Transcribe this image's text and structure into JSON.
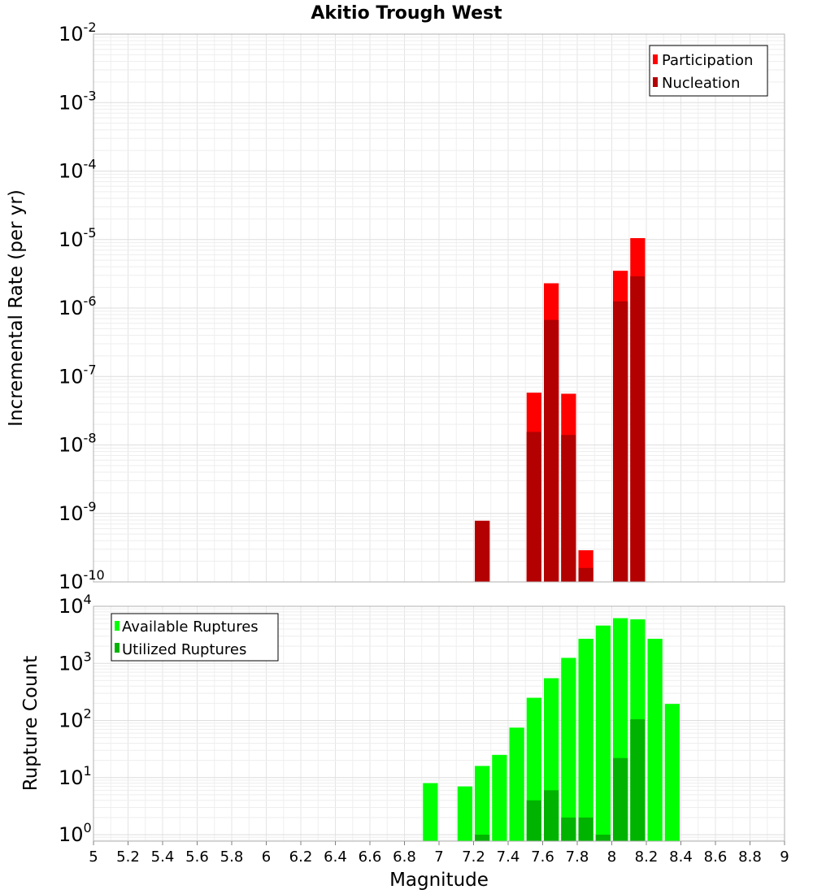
{
  "chart_data": [
    {
      "type": "bar",
      "title": "Akitio Trough West",
      "ylabel": "Incremental Rate (per yr)",
      "xlim": [
        5,
        9
      ],
      "ylim": [
        1e-10,
        0.01
      ],
      "yscale": "log",
      "ytick_exponents": [
        -2,
        -3,
        -4,
        -5,
        -6,
        -7,
        -8,
        -9,
        -10
      ],
      "grid": true,
      "legend_position": "top-right",
      "series": [
        {
          "name": "Participation",
          "color": "#ff0000",
          "x": [
            7.25,
            7.55,
            7.65,
            7.75,
            7.85,
            8.05,
            8.15
          ],
          "values": [
            7.8e-10,
            5.8e-08,
            2.3e-06,
            5.6e-08,
            2.9e-10,
            3.5e-06,
            1.05e-05
          ]
        },
        {
          "name": "Nucleation",
          "color": "#b30000",
          "x": [
            7.25,
            7.55,
            7.65,
            7.75,
            7.85,
            8.05,
            8.15
          ],
          "values": [
            7.8e-10,
            1.55e-08,
            6.7e-07,
            1.4e-08,
            1.6e-10,
            1.25e-06,
            2.9e-06
          ]
        }
      ]
    },
    {
      "type": "bar",
      "ylabel": "Rupture Count",
      "xlabel": "Magnitude",
      "xlim": [
        5,
        9
      ],
      "xticks": [
        "5",
        "5.2",
        "5.4",
        "5.6",
        "5.8",
        "6",
        "6.2",
        "6.4",
        "6.6",
        "6.8",
        "7",
        "7.2",
        "7.4",
        "7.6",
        "7.8",
        "8",
        "8.2",
        "8.4",
        "8.6",
        "8.8",
        "9"
      ],
      "ylim": [
        0.77,
        10000
      ],
      "yscale": "log",
      "ytick_exponents": [
        0,
        1,
        2,
        3,
        4
      ],
      "grid": true,
      "legend_position": "top-left",
      "series": [
        {
          "name": "Available Ruptures",
          "color": "#00ff00",
          "x": [
            6.95,
            7.15,
            7.25,
            7.35,
            7.45,
            7.55,
            7.65,
            7.75,
            7.85,
            7.95,
            8.05,
            8.15,
            8.25,
            8.35
          ],
          "values": [
            8,
            7,
            16,
            25,
            75,
            250,
            550,
            1250,
            2700,
            4600,
            6200,
            5900,
            2700,
            195
          ]
        },
        {
          "name": "Utilized Ruptures",
          "color": "#00b300",
          "x": [
            7.25,
            7.55,
            7.65,
            7.75,
            7.85,
            7.95,
            8.05,
            8.15
          ],
          "values": [
            1,
            4,
            6,
            2,
            2,
            1,
            22,
            105
          ]
        }
      ]
    }
  ]
}
